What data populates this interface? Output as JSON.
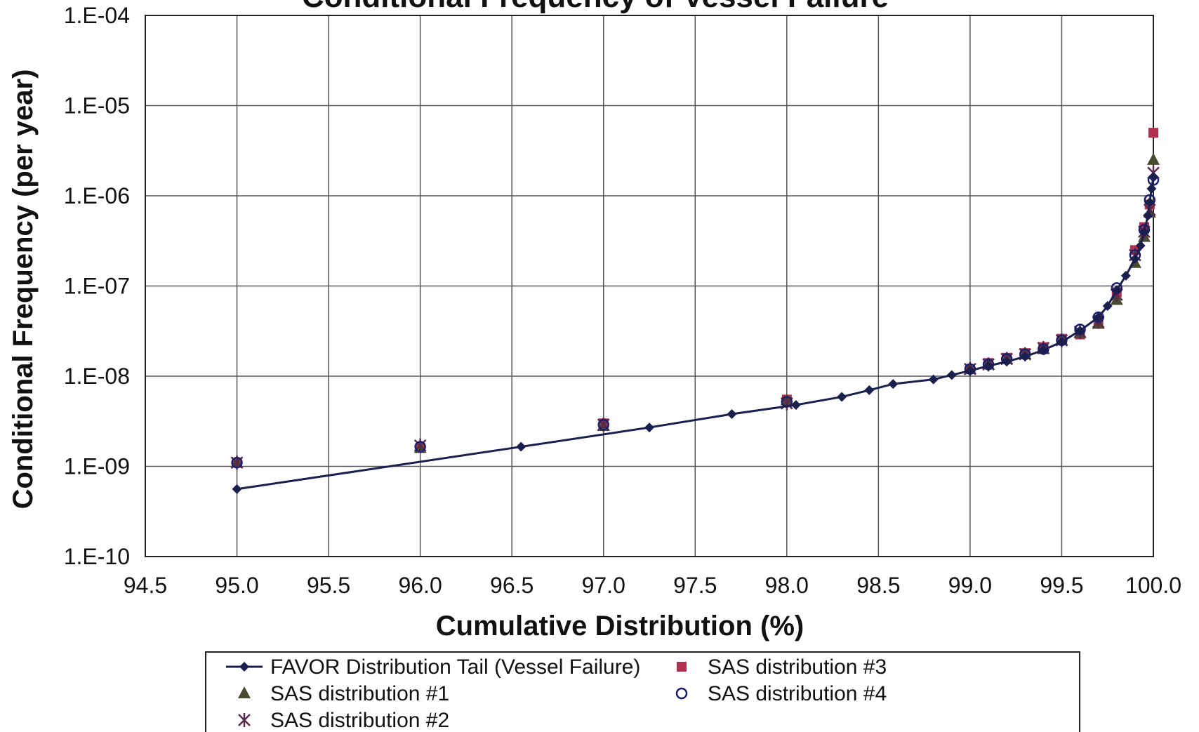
{
  "chart_data": {
    "type": "scatter",
    "title": "Conditional Frequency of Vessel Failure",
    "xlabel": "Cumulative Distribution (%)",
    "ylabel": "Conditional Frequency (per year)",
    "xlim": [
      94.5,
      100.0
    ],
    "x_scale": "linear",
    "ylim": [
      1e-10,
      0.0001
    ],
    "y_scale": "log",
    "x_ticks": [
      "94.5",
      "95.0",
      "95.5",
      "96.0",
      "96.5",
      "97.0",
      "97.5",
      "98.0",
      "98.5",
      "99.0",
      "99.5",
      "100.0"
    ],
    "x_tick_values": [
      94.5,
      95.0,
      95.5,
      96.0,
      96.5,
      97.0,
      97.5,
      98.0,
      98.5,
      99.0,
      99.5,
      100.0
    ],
    "y_ticks": [
      "1.E-10",
      "1.E-09",
      "1.E-08",
      "1.E-07",
      "1.E-06",
      "1.E-05",
      "1.E-04"
    ],
    "y_tick_values": [
      1e-10,
      1e-09,
      1e-08,
      1e-07,
      1e-06,
      1e-05,
      0.0001
    ],
    "grid": true,
    "legend_position": "bottom",
    "series": [
      {
        "name": "FAVOR Distribution Tail (Vessel Failure)",
        "style": "line-diamond",
        "color": "#1a1f4d",
        "points": [
          [
            95.0,
            5.6e-10
          ],
          [
            96.55,
            1.65e-09
          ],
          [
            97.25,
            2.7e-09
          ],
          [
            97.7,
            3.8e-09
          ],
          [
            98.05,
            4.8e-09
          ],
          [
            98.3,
            5.9e-09
          ],
          [
            98.45,
            7e-09
          ],
          [
            98.58,
            8.2e-09
          ],
          [
            98.8,
            9.2e-09
          ],
          [
            98.9,
            1.03e-08
          ],
          [
            99.0,
            1.15e-08
          ],
          [
            99.1,
            1.3e-08
          ],
          [
            99.2,
            1.45e-08
          ],
          [
            99.3,
            1.65e-08
          ],
          [
            99.4,
            1.95e-08
          ],
          [
            99.5,
            2.4e-08
          ],
          [
            99.6,
            3.2e-08
          ],
          [
            99.7,
            4.5e-08
          ],
          [
            99.75,
            6e-08
          ],
          [
            99.8,
            9e-08
          ],
          [
            99.85,
            1.3e-07
          ],
          [
            99.9,
            2e-07
          ],
          [
            99.93,
            2.8e-07
          ],
          [
            99.95,
            4e-07
          ],
          [
            99.97,
            6e-07
          ],
          [
            99.98,
            8.5e-07
          ],
          [
            99.99,
            1.2e-06
          ],
          [
            100.0,
            1.6e-06
          ]
        ]
      },
      {
        "name": "SAS distribution #1",
        "style": "triangle",
        "color": "#4a4a30",
        "points": [
          [
            95.0,
            1.1e-09
          ],
          [
            96.0,
            1.6e-09
          ],
          [
            97.0,
            2.8e-09
          ],
          [
            98.0,
            5.4e-09
          ],
          [
            99.0,
            1.2e-08
          ],
          [
            99.1,
            1.35e-08
          ],
          [
            99.2,
            1.55e-08
          ],
          [
            99.3,
            1.75e-08
          ],
          [
            99.4,
            2e-08
          ],
          [
            99.5,
            2.5e-08
          ],
          [
            99.6,
            3e-08
          ],
          [
            99.7,
            3.8e-08
          ],
          [
            99.8,
            7e-08
          ],
          [
            99.9,
            1.8e-07
          ],
          [
            99.95,
            3.5e-07
          ],
          [
            99.98,
            6.5e-07
          ],
          [
            100.0,
            2.5e-06
          ]
        ]
      },
      {
        "name": "SAS distribution #2",
        "style": "star",
        "color": "#5a2a4a",
        "points": [
          [
            95.0,
            1.1e-09
          ],
          [
            96.0,
            1.7e-09
          ],
          [
            97.0,
            2.9e-09
          ],
          [
            98.0,
            5e-09
          ],
          [
            99.0,
            1.2e-08
          ],
          [
            99.1,
            1.35e-08
          ],
          [
            99.2,
            1.55e-08
          ],
          [
            99.3,
            1.75e-08
          ],
          [
            99.4,
            2.05e-08
          ],
          [
            99.5,
            2.5e-08
          ],
          [
            99.6,
            3.1e-08
          ],
          [
            99.7,
            4e-08
          ],
          [
            99.8,
            8e-08
          ],
          [
            99.9,
            2.2e-07
          ],
          [
            99.95,
            4e-07
          ],
          [
            99.98,
            7e-07
          ],
          [
            100.0,
            1.8e-06
          ]
        ]
      },
      {
        "name": "SAS distribution #3",
        "style": "square",
        "color": "#b03050",
        "points": [
          [
            95.0,
            1.1e-09
          ],
          [
            96.0,
            1.6e-09
          ],
          [
            97.0,
            3e-09
          ],
          [
            98.0,
            5.5e-09
          ],
          [
            99.0,
            1.2e-08
          ],
          [
            99.1,
            1.4e-08
          ],
          [
            99.2,
            1.6e-08
          ],
          [
            99.3,
            1.8e-08
          ],
          [
            99.4,
            2.1e-08
          ],
          [
            99.5,
            2.6e-08
          ],
          [
            99.6,
            2.9e-08
          ],
          [
            99.7,
            4.2e-08
          ],
          [
            99.8,
            8.5e-08
          ],
          [
            99.9,
            2.5e-07
          ],
          [
            99.95,
            4.5e-07
          ],
          [
            99.98,
            8e-07
          ],
          [
            100.0,
            5e-06
          ]
        ]
      },
      {
        "name": "SAS distribution #4",
        "style": "circle",
        "color": "#1a1f6d",
        "points": [
          [
            95.0,
            1.1e-09
          ],
          [
            96.0,
            1.65e-09
          ],
          [
            97.0,
            2.9e-09
          ],
          [
            98.0,
            5.2e-09
          ],
          [
            99.0,
            1.2e-08
          ],
          [
            99.1,
            1.35e-08
          ],
          [
            99.2,
            1.55e-08
          ],
          [
            99.3,
            1.75e-08
          ],
          [
            99.4,
            2e-08
          ],
          [
            99.5,
            2.5e-08
          ],
          [
            99.6,
            3.3e-08
          ],
          [
            99.7,
            4.5e-08
          ],
          [
            99.8,
            9.5e-08
          ],
          [
            99.9,
            2.2e-07
          ],
          [
            99.95,
            4.2e-07
          ],
          [
            99.98,
            9e-07
          ],
          [
            100.0,
            1.5e-06
          ]
        ]
      }
    ]
  }
}
